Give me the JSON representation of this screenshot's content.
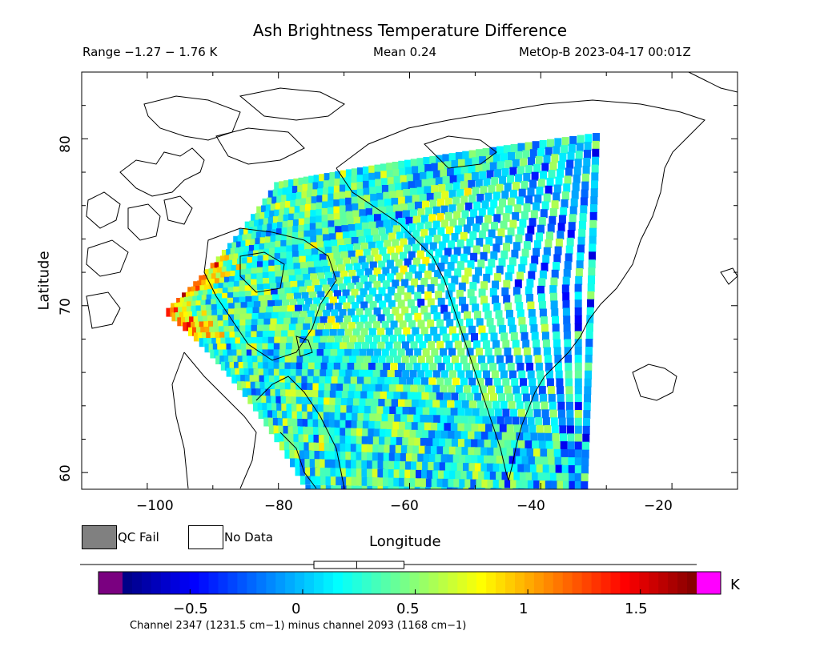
{
  "header": {
    "title": "Ash Brightness Temperature Difference",
    "range": "Range −1.27 − 1.76 K",
    "mean": "Mean 0.24",
    "satellite": "MetOp-B 2023-04-17 00:01Z"
  },
  "axes": {
    "xlabel": "Longitude",
    "ylabel": "Latitude",
    "x_ticks": [
      "−100",
      "−80",
      "−60",
      "−40",
      "−20"
    ],
    "y_ticks": [
      "60",
      "70",
      "80"
    ],
    "xlim": [
      -110,
      -10
    ],
    "ylim": [
      59,
      84
    ]
  },
  "legend": {
    "qc_fail": "QC Fail",
    "no_data": "No Data",
    "qc_fail_color": "#808080",
    "no_data_color": "#ffffff"
  },
  "colorbar": {
    "unit": "K",
    "ticks": [
      "−0.5",
      "0",
      "0.5",
      "1",
      "1.5"
    ],
    "tick_values": [
      -0.5,
      0,
      0.5,
      1,
      1.5
    ],
    "min": -0.8,
    "max": 1.75,
    "under_color": "#7a0080",
    "over_color": "#ff00ff",
    "caption": "Channel 2347 (1231.5 cm−1) minus channel 2093 (1168 cm−1)",
    "mean_value": 0.24,
    "box_low": 0.05,
    "box_high": 0.45
  },
  "chart_data": {
    "type": "heatmap",
    "title": "Ash Brightness Temperature Difference",
    "xlabel": "Longitude",
    "ylabel": "Latitude",
    "xlim": [
      -110,
      -10
    ],
    "ylim": [
      59,
      84
    ],
    "value_range": [
      -1.27,
      1.76
    ],
    "mean": 0.24,
    "units": "K",
    "swath_extent": {
      "lon": [
        -101,
        -31
      ],
      "lat": [
        59,
        80.7
      ]
    }
  }
}
